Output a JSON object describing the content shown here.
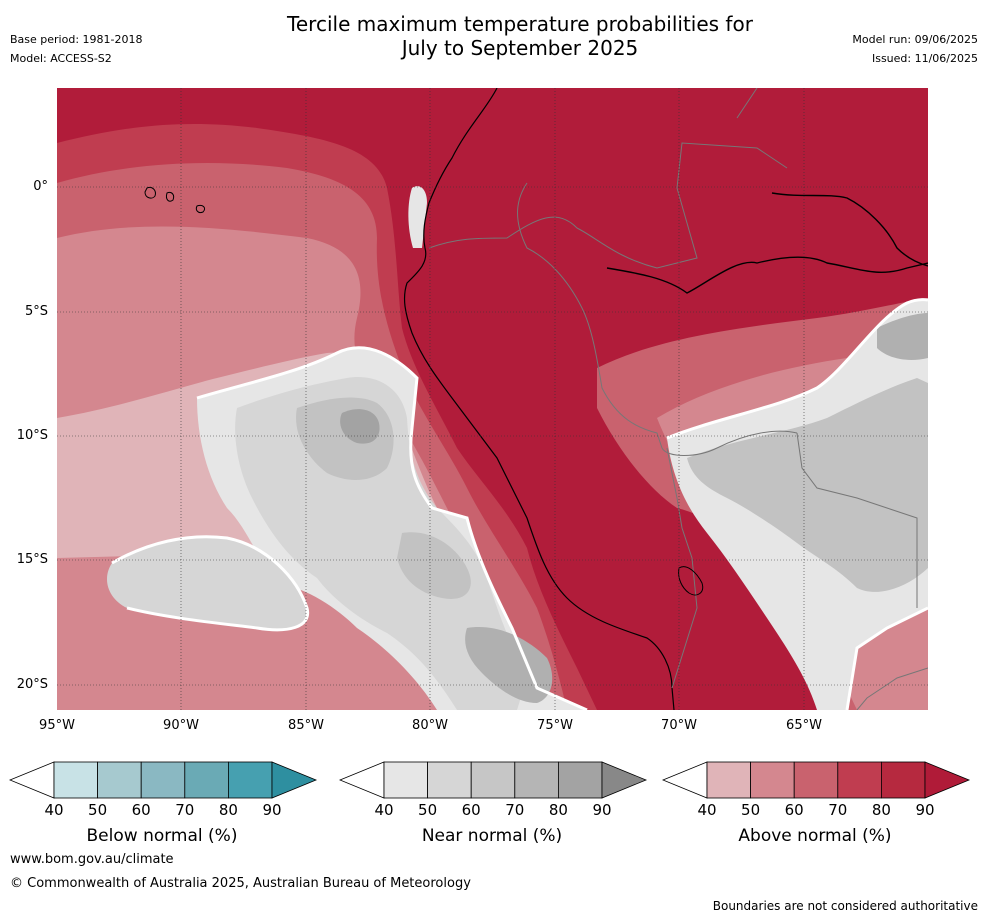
{
  "title": {
    "line1": "Tercile maximum temperature probabilities for",
    "line2": "July to September 2025"
  },
  "meta_left": {
    "base_period": "Base period: 1981-2018",
    "model": "Model: ACCESS-S2"
  },
  "meta_right": {
    "model_run": "Model run: 09/06/2025",
    "issued": "Issued: 11/06/2025"
  },
  "map": {
    "region": "Western South America",
    "lat_labels": [
      "0°",
      "5°S",
      "10°S",
      "15°S",
      "20°S"
    ],
    "lon_labels": [
      "95°W",
      "90°W",
      "85°W",
      "80°W",
      "75°W",
      "70°W",
      "65°W"
    ],
    "colors": {
      "above_90": "#b11c3a",
      "above_80": "#c03d50",
      "above_70": "#c9626e",
      "above_60": "#d4878f",
      "above_50": "#e0b4b8",
      "near_50": "#e6e6e6",
      "near_60": "#d6d6d6",
      "near_70": "#c2c2c2",
      "near_80": "#b0b0b0",
      "near_90": "#a3a3a3"
    }
  },
  "colorbars": [
    {
      "name": "below",
      "label": "Below normal (%)",
      "ticks": [
        "40",
        "50",
        "60",
        "70",
        "80",
        "90"
      ],
      "colors": [
        "#ffffff",
        "#c8e2e6",
        "#a6c9cf",
        "#8ab8c2",
        "#6aaab5",
        "#46a0b0",
        "#2e8fa0"
      ]
    },
    {
      "name": "near",
      "label": "Near normal (%)",
      "ticks": [
        "40",
        "50",
        "60",
        "70",
        "80",
        "90"
      ],
      "colors": [
        "#ffffff",
        "#e6e6e6",
        "#d6d6d6",
        "#c6c6c6",
        "#b5b5b5",
        "#a3a3a3",
        "#888888"
      ]
    },
    {
      "name": "above",
      "label": "Above normal (%)",
      "ticks": [
        "40",
        "50",
        "60",
        "70",
        "80",
        "90"
      ],
      "colors": [
        "#ffffff",
        "#e0b4b8",
        "#d4878f",
        "#c9626e",
        "#c03d50",
        "#b6293f",
        "#b01b38"
      ]
    }
  ],
  "footer": {
    "url": "www.bom.gov.au/climate",
    "copyright": "© Commonwealth of Australia 2025, Australian Bureau of Meteorology",
    "disclaimer": "Boundaries are not considered authoritative"
  }
}
